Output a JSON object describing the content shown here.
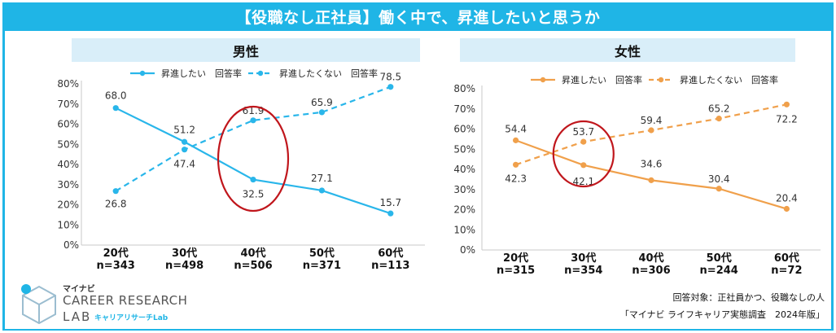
{
  "header": {
    "title": "【役職なし正社員】働く中で、昇進したいと思うか"
  },
  "colors": {
    "frame": "#1fb5e6",
    "male": "#29b6ea",
    "female": "#f0a04b",
    "highlight": "#c0161c",
    "panel": "#d9eef9"
  },
  "chart_data": [
    {
      "type": "line",
      "title": "男性",
      "categories": [
        "20代",
        "30代",
        "40代",
        "50代",
        "60代"
      ],
      "sample_sizes": [
        "n=343",
        "n=498",
        "n=506",
        "n=371",
        "n=113"
      ],
      "y_ticks": [
        "80%",
        "70%",
        "60%",
        "50%",
        "40%",
        "30%",
        "20%",
        "10%",
        "0%"
      ],
      "ylim": [
        0,
        80
      ],
      "legend": [
        "昇進したい　回答率",
        "昇進したくない　回答率"
      ],
      "series": [
        {
          "name": "昇進したい　回答率",
          "style": "solid",
          "values": [
            68.0,
            51.2,
            32.5,
            27.1,
            15.7
          ],
          "labels": [
            "68.0",
            "51.2",
            "32.5",
            "27.1",
            "15.7"
          ]
        },
        {
          "name": "昇進したくない　回答率",
          "style": "dashed",
          "values": [
            26.8,
            47.4,
            61.9,
            65.9,
            78.5
          ],
          "labels": [
            "26.8",
            "47.4",
            "61.9",
            "65.9",
            "78.5"
          ]
        }
      ],
      "highlight_category": "40代"
    },
    {
      "type": "line",
      "title": "女性",
      "categories": [
        "20代",
        "30代",
        "40代",
        "50代",
        "60代"
      ],
      "sample_sizes": [
        "n=315",
        "n=354",
        "n=306",
        "n=244",
        "n=72"
      ],
      "y_ticks": [
        "80%",
        "70%",
        "60%",
        "50%",
        "40%",
        "30%",
        "20%",
        "10%",
        "0%"
      ],
      "ylim": [
        0,
        80
      ],
      "legend": [
        "昇進したい　回答率",
        "昇進したくない　回答率"
      ],
      "series": [
        {
          "name": "昇進したい　回答率",
          "style": "solid",
          "values": [
            54.4,
            42.1,
            34.6,
            30.4,
            20.4
          ],
          "labels": [
            "54.4",
            "42.1",
            "34.6",
            "30.4",
            "20.4"
          ]
        },
        {
          "name": "昇進したくない　回答率",
          "style": "dashed",
          "values": [
            42.3,
            53.7,
            59.4,
            65.2,
            72.2
          ],
          "labels": [
            "42.3",
            "53.7",
            "59.4",
            "65.2",
            "72.2"
          ]
        }
      ],
      "highlight_category": "30代"
    }
  ],
  "footer": {
    "note1": "回答対象：正社員かつ、役職なしの人",
    "note2": "「マイナビ ライフキャリア実態調査　2024年版」"
  },
  "logo": {
    "brand": "マイナビ",
    "line1": "CAREER RESEARCH",
    "line2": "LAB",
    "sub": "キャリアリサーチLab"
  }
}
